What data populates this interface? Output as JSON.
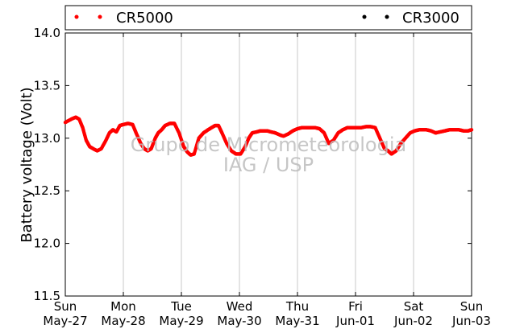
{
  "chart_data": {
    "type": "scatter",
    "ylabel": "Battery voltage (Volt)",
    "ylim": [
      11.5,
      14.0
    ],
    "yticks": [
      "11.5",
      "12.0",
      "12.5",
      "13.0",
      "13.5",
      "14.0"
    ],
    "xlim": [
      "2012-05-27",
      "2012-06-03"
    ],
    "xticks": [
      {
        "day": "Sun",
        "date": "May-27"
      },
      {
        "day": "Mon",
        "date": "May-28"
      },
      {
        "day": "Tue",
        "date": "May-29"
      },
      {
        "day": "Wed",
        "date": "May-30"
      },
      {
        "day": "Thu",
        "date": "May-31"
      },
      {
        "day": "Fri",
        "date": "Jun-01"
      },
      {
        "day": "Sat",
        "date": "Jun-02"
      },
      {
        "day": "Sun",
        "date": "Jun-03"
      }
    ],
    "grid": "vertical",
    "legend_position": "top",
    "watermark": [
      "Grupo de Micrometeorologia",
      "IAG / USP"
    ],
    "series": [
      {
        "name": "CR5000",
        "color": "#ff0000",
        "marker": "dot",
        "x_days": [
          0.0,
          0.1,
          0.18,
          0.24,
          0.3,
          0.36,
          0.42,
          0.48,
          0.55,
          0.62,
          0.7,
          0.76,
          0.82,
          0.88,
          0.94,
          1.0,
          1.08,
          1.16,
          1.22,
          1.3,
          1.36,
          1.42,
          1.48,
          1.55,
          1.6,
          1.66,
          1.72,
          1.8,
          1.88,
          1.96,
          2.04,
          2.1,
          2.16,
          2.22,
          2.3,
          2.38,
          2.46,
          2.52,
          2.58,
          2.64,
          2.7,
          2.78,
          2.86,
          2.94,
          3.02,
          3.1,
          3.16,
          3.22,
          3.3,
          3.36,
          3.42,
          3.48,
          3.54,
          3.62,
          3.7,
          3.76,
          3.84,
          3.92,
          4.0,
          4.08,
          4.16,
          4.22,
          4.3,
          4.38,
          4.46,
          4.54,
          4.62,
          4.7,
          4.78,
          4.86,
          4.94,
          5.02,
          5.1,
          5.18,
          5.26,
          5.34,
          5.42,
          5.5,
          5.56,
          5.62,
          5.7,
          5.78,
          5.86,
          5.94,
          6.02,
          6.1,
          6.16,
          6.22,
          6.3,
          6.38,
          6.46,
          6.54,
          6.62,
          6.7,
          6.78,
          6.86,
          6.94,
          7.0
        ],
        "y": [
          13.15,
          13.18,
          13.2,
          13.18,
          13.1,
          12.98,
          12.92,
          12.9,
          12.88,
          12.9,
          12.98,
          13.05,
          13.08,
          13.06,
          13.12,
          13.13,
          13.14,
          13.13,
          13.05,
          12.95,
          12.9,
          12.88,
          12.9,
          13.0,
          13.05,
          13.08,
          13.12,
          13.14,
          13.14,
          13.05,
          12.92,
          12.87,
          12.84,
          12.85,
          13.0,
          13.05,
          13.08,
          13.1,
          13.12,
          13.12,
          13.05,
          12.95,
          12.88,
          12.85,
          12.85,
          12.92,
          13.0,
          13.05,
          13.06,
          13.07,
          13.07,
          13.07,
          13.06,
          13.05,
          13.03,
          13.02,
          13.04,
          13.07,
          13.09,
          13.1,
          13.1,
          13.1,
          13.1,
          13.09,
          13.05,
          12.95,
          12.98,
          13.05,
          13.08,
          13.1,
          13.1,
          13.1,
          13.1,
          13.11,
          13.11,
          13.1,
          13.0,
          12.9,
          12.88,
          12.85,
          12.88,
          12.95,
          13.0,
          13.05,
          13.07,
          13.08,
          13.08,
          13.08,
          13.07,
          13.05,
          13.06,
          13.07,
          13.08,
          13.08,
          13.08,
          13.07,
          13.07,
          13.08
        ]
      },
      {
        "name": "CR3000",
        "color": "#000000",
        "marker": "dot",
        "x_days": [],
        "y": []
      }
    ]
  }
}
